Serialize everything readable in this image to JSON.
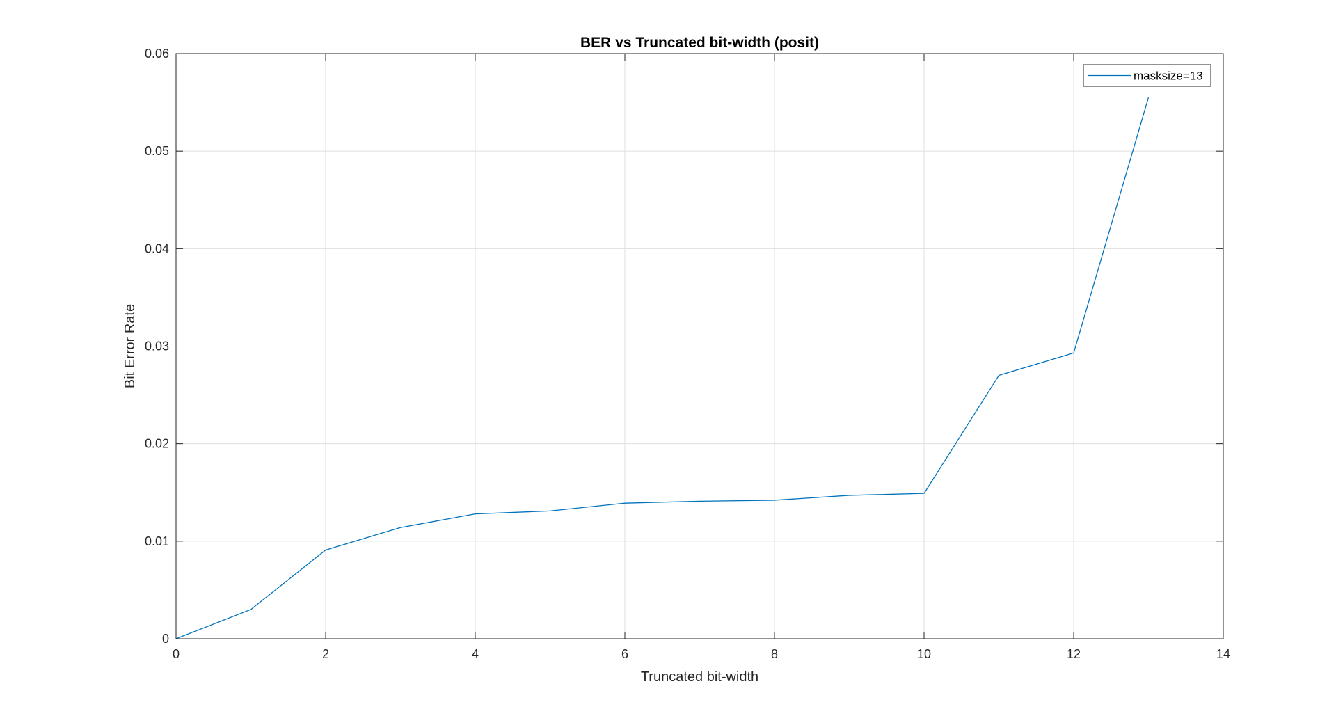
{
  "chart_data": {
    "type": "line",
    "title": "BER vs Truncated bit-width (posit)",
    "xlabel": "Truncated bit-width",
    "ylabel": "Bit Error Rate",
    "xlim": [
      0,
      14
    ],
    "ylim": [
      0,
      0.06
    ],
    "xticks": [
      0,
      2,
      4,
      6,
      8,
      10,
      12,
      14
    ],
    "yticks": [
      0,
      0.01,
      0.02,
      0.03,
      0.04,
      0.05,
      0.06
    ],
    "xtick_labels": [
      "0",
      "2",
      "4",
      "6",
      "8",
      "10",
      "12",
      "14"
    ],
    "ytick_labels": [
      "0",
      "0.01",
      "0.02",
      "0.03",
      "0.04",
      "0.05",
      "0.06"
    ],
    "grid": true,
    "legend_position": "top-right",
    "series": [
      {
        "name": "masksize=13",
        "color": "#0072BD",
        "x": [
          0,
          1,
          2,
          3,
          4,
          5,
          6,
          7,
          8,
          9,
          10,
          11,
          12,
          13
        ],
        "y": [
          0,
          0.003,
          0.0091,
          0.0114,
          0.0128,
          0.0131,
          0.0139,
          0.0141,
          0.0142,
          0.0147,
          0.0149,
          0.027,
          0.0293,
          0.0555
        ]
      }
    ]
  }
}
